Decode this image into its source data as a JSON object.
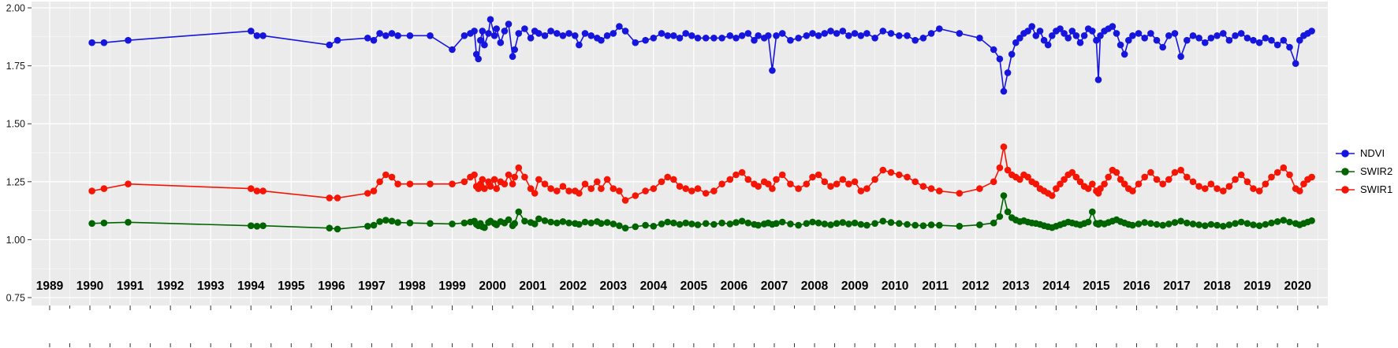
{
  "style": {
    "figure_bg": "#FFFFFF",
    "panel_bg": "#EBEBEB",
    "grid_major": "#FFFFFF",
    "grid_minor": "#FFFFFF",
    "tick_color": "#333333",
    "y_label_color": "#1a1a1a",
    "x_label_color": "#000000"
  },
  "chart_data": {
    "type": "line",
    "title": "",
    "xlabel": "",
    "ylabel": "",
    "grid": true,
    "legend_position": "right",
    "x_axis": {
      "tick_labels": [
        "1989",
        "1990",
        "1991",
        "1992",
        "1993",
        "1994",
        "1995",
        "1996",
        "1997",
        "1998",
        "1999",
        "2000",
        "2001",
        "2002",
        "2003",
        "2004",
        "2005",
        "2006",
        "2007",
        "2008",
        "2009",
        "2010",
        "2011",
        "2012",
        "2013",
        "2014",
        "2015",
        "2016",
        "2017",
        "2018",
        "2019",
        "2020"
      ]
    },
    "y_axis": {
      "tick_labels": [
        "2.00",
        "1.75",
        "1.50",
        "1.25",
        "1.00",
        "0.75"
      ],
      "range": [
        0.75,
        2.0
      ]
    },
    "x": [
      1990.05,
      1990.35,
      1990.95,
      1994.0,
      1994.15,
      1994.3,
      1995.95,
      1996.15,
      1996.9,
      1997.05,
      1997.2,
      1997.35,
      1997.5,
      1997.65,
      1997.95,
      1998.45,
      1999.0,
      1999.3,
      1999.45,
      1999.55,
      1999.6,
      1999.65,
      1999.7,
      1999.75,
      1999.8,
      1999.9,
      1999.95,
      2000.05,
      2000.1,
      2000.2,
      2000.3,
      2000.4,
      2000.5,
      2000.55,
      2000.65,
      2000.8,
      2000.95,
      2001.05,
      2001.15,
      2001.3,
      2001.45,
      2001.6,
      2001.75,
      2001.9,
      2002.05,
      2002.15,
      2002.3,
      2002.45,
      2002.6,
      2002.7,
      2002.85,
      2003.0,
      2003.15,
      2003.3,
      2003.55,
      2003.8,
      2004.0,
      2004.2,
      2004.35,
      2004.5,
      2004.65,
      2004.8,
      2004.95,
      2005.1,
      2005.3,
      2005.5,
      2005.7,
      2005.9,
      2006.05,
      2006.2,
      2006.35,
      2006.5,
      2006.6,
      2006.75,
      2006.85,
      2006.95,
      2007.05,
      2007.2,
      2007.4,
      2007.6,
      2007.8,
      2007.95,
      2008.1,
      2008.25,
      2008.4,
      2008.55,
      2008.7,
      2008.85,
      2009.0,
      2009.15,
      2009.3,
      2009.5,
      2009.7,
      2009.9,
      2010.1,
      2010.3,
      2010.5,
      2010.7,
      2010.9,
      2011.1,
      2011.6,
      2012.1,
      2012.45,
      2012.6,
      2012.7,
      2012.8,
      2012.9,
      2013.0,
      2013.1,
      2013.2,
      2013.3,
      2013.4,
      2013.5,
      2013.6,
      2013.7,
      2013.8,
      2013.9,
      2014.0,
      2014.1,
      2014.2,
      2014.3,
      2014.4,
      2014.5,
      2014.6,
      2014.7,
      2014.8,
      2014.9,
      2015.0,
      2015.05,
      2015.1,
      2015.2,
      2015.3,
      2015.4,
      2015.5,
      2015.6,
      2015.7,
      2015.8,
      2015.9,
      2016.05,
      2016.2,
      2016.35,
      2016.5,
      2016.65,
      2016.8,
      2016.95,
      2017.1,
      2017.25,
      2017.4,
      2017.55,
      2017.7,
      2017.85,
      2018.0,
      2018.15,
      2018.3,
      2018.45,
      2018.6,
      2018.75,
      2018.9,
      2019.05,
      2019.2,
      2019.35,
      2019.5,
      2019.65,
      2019.8,
      2019.95,
      2020.05,
      2020.15,
      2020.25,
      2020.35
    ],
    "series": [
      {
        "name": "NDVI",
        "color": "#1515DD",
        "values": [
          1.85,
          1.85,
          1.86,
          1.9,
          1.88,
          1.88,
          1.84,
          1.86,
          1.87,
          1.86,
          1.89,
          1.88,
          1.89,
          1.88,
          1.88,
          1.88,
          1.82,
          1.88,
          1.89,
          1.9,
          1.8,
          1.78,
          1.86,
          1.9,
          1.84,
          1.89,
          1.95,
          1.88,
          1.91,
          1.85,
          1.9,
          1.93,
          1.79,
          1.82,
          1.89,
          1.91,
          1.87,
          1.9,
          1.89,
          1.88,
          1.9,
          1.89,
          1.88,
          1.89,
          1.88,
          1.84,
          1.89,
          1.88,
          1.87,
          1.86,
          1.88,
          1.89,
          1.92,
          1.9,
          1.85,
          1.86,
          1.87,
          1.89,
          1.88,
          1.88,
          1.87,
          1.89,
          1.88,
          1.87,
          1.87,
          1.87,
          1.87,
          1.88,
          1.87,
          1.88,
          1.89,
          1.86,
          1.88,
          1.87,
          1.88,
          1.73,
          1.88,
          1.89,
          1.86,
          1.87,
          1.88,
          1.89,
          1.88,
          1.89,
          1.9,
          1.89,
          1.9,
          1.88,
          1.89,
          1.88,
          1.89,
          1.87,
          1.9,
          1.89,
          1.88,
          1.88,
          1.86,
          1.87,
          1.89,
          1.91,
          1.89,
          1.87,
          1.82,
          1.78,
          1.64,
          1.72,
          1.8,
          1.85,
          1.87,
          1.89,
          1.9,
          1.92,
          1.88,
          1.9,
          1.86,
          1.84,
          1.88,
          1.9,
          1.91,
          1.89,
          1.87,
          1.9,
          1.88,
          1.85,
          1.88,
          1.91,
          1.9,
          1.86,
          1.69,
          1.88,
          1.9,
          1.91,
          1.92,
          1.89,
          1.84,
          1.8,
          1.86,
          1.88,
          1.89,
          1.87,
          1.89,
          1.86,
          1.83,
          1.88,
          1.89,
          1.79,
          1.86,
          1.88,
          1.87,
          1.85,
          1.87,
          1.88,
          1.89,
          1.86,
          1.88,
          1.89,
          1.87,
          1.86,
          1.85,
          1.87,
          1.86,
          1.84,
          1.86,
          1.83,
          1.76,
          1.86,
          1.88,
          1.89,
          1.9
        ]
      },
      {
        "name": "SWIR2",
        "color": "#006400",
        "values": [
          1.07,
          1.072,
          1.075,
          1.06,
          1.058,
          1.06,
          1.05,
          1.046,
          1.058,
          1.062,
          1.078,
          1.084,
          1.08,
          1.074,
          1.072,
          1.07,
          1.068,
          1.072,
          1.076,
          1.08,
          1.066,
          1.06,
          1.07,
          1.056,
          1.052,
          1.074,
          1.08,
          1.07,
          1.064,
          1.078,
          1.072,
          1.086,
          1.06,
          1.07,
          1.12,
          1.08,
          1.074,
          1.068,
          1.09,
          1.082,
          1.076,
          1.072,
          1.078,
          1.072,
          1.07,
          1.066,
          1.076,
          1.072,
          1.078,
          1.07,
          1.074,
          1.068,
          1.06,
          1.05,
          1.056,
          1.062,
          1.058,
          1.068,
          1.076,
          1.072,
          1.066,
          1.072,
          1.068,
          1.064,
          1.07,
          1.066,
          1.072,
          1.068,
          1.074,
          1.08,
          1.072,
          1.066,
          1.062,
          1.068,
          1.072,
          1.066,
          1.07,
          1.076,
          1.068,
          1.062,
          1.07,
          1.076,
          1.072,
          1.068,
          1.064,
          1.07,
          1.074,
          1.068,
          1.072,
          1.066,
          1.062,
          1.07,
          1.08,
          1.074,
          1.07,
          1.066,
          1.062,
          1.06,
          1.064,
          1.062,
          1.058,
          1.064,
          1.072,
          1.1,
          1.19,
          1.12,
          1.095,
          1.085,
          1.078,
          1.082,
          1.076,
          1.072,
          1.07,
          1.066,
          1.06,
          1.056,
          1.052,
          1.058,
          1.064,
          1.07,
          1.076,
          1.072,
          1.068,
          1.064,
          1.07,
          1.076,
          1.12,
          1.07,
          1.066,
          1.072,
          1.068,
          1.074,
          1.08,
          1.086,
          1.078,
          1.072,
          1.066,
          1.062,
          1.068,
          1.074,
          1.07,
          1.066,
          1.062,
          1.068,
          1.074,
          1.08,
          1.072,
          1.068,
          1.064,
          1.06,
          1.066,
          1.062,
          1.058,
          1.064,
          1.07,
          1.076,
          1.07,
          1.064,
          1.06,
          1.066,
          1.072,
          1.078,
          1.084,
          1.076,
          1.07,
          1.064,
          1.07,
          1.076,
          1.082
        ]
      },
      {
        "name": "SWIR1",
        "color": "#F51505",
        "values": [
          1.21,
          1.22,
          1.24,
          1.22,
          1.21,
          1.21,
          1.18,
          1.18,
          1.2,
          1.21,
          1.25,
          1.28,
          1.27,
          1.24,
          1.24,
          1.24,
          1.24,
          1.25,
          1.27,
          1.28,
          1.23,
          1.22,
          1.24,
          1.26,
          1.22,
          1.25,
          1.23,
          1.26,
          1.22,
          1.25,
          1.24,
          1.28,
          1.24,
          1.27,
          1.31,
          1.27,
          1.22,
          1.2,
          1.26,
          1.24,
          1.22,
          1.21,
          1.23,
          1.21,
          1.21,
          1.2,
          1.24,
          1.22,
          1.25,
          1.22,
          1.26,
          1.22,
          1.21,
          1.17,
          1.19,
          1.21,
          1.22,
          1.25,
          1.27,
          1.26,
          1.23,
          1.22,
          1.21,
          1.22,
          1.2,
          1.21,
          1.24,
          1.26,
          1.28,
          1.29,
          1.26,
          1.24,
          1.23,
          1.25,
          1.24,
          1.22,
          1.26,
          1.28,
          1.24,
          1.22,
          1.24,
          1.27,
          1.28,
          1.25,
          1.23,
          1.24,
          1.26,
          1.24,
          1.25,
          1.21,
          1.22,
          1.26,
          1.3,
          1.29,
          1.28,
          1.27,
          1.25,
          1.23,
          1.22,
          1.21,
          1.2,
          1.22,
          1.25,
          1.31,
          1.4,
          1.3,
          1.28,
          1.27,
          1.26,
          1.28,
          1.27,
          1.25,
          1.24,
          1.22,
          1.21,
          1.2,
          1.19,
          1.22,
          1.24,
          1.26,
          1.28,
          1.29,
          1.27,
          1.25,
          1.23,
          1.22,
          1.24,
          1.21,
          1.2,
          1.22,
          1.24,
          1.27,
          1.3,
          1.29,
          1.26,
          1.24,
          1.22,
          1.21,
          1.24,
          1.27,
          1.29,
          1.26,
          1.24,
          1.26,
          1.29,
          1.3,
          1.27,
          1.25,
          1.23,
          1.22,
          1.24,
          1.22,
          1.21,
          1.23,
          1.26,
          1.28,
          1.25,
          1.22,
          1.21,
          1.24,
          1.27,
          1.29,
          1.31,
          1.28,
          1.22,
          1.21,
          1.24,
          1.26,
          1.27
        ]
      }
    ]
  }
}
